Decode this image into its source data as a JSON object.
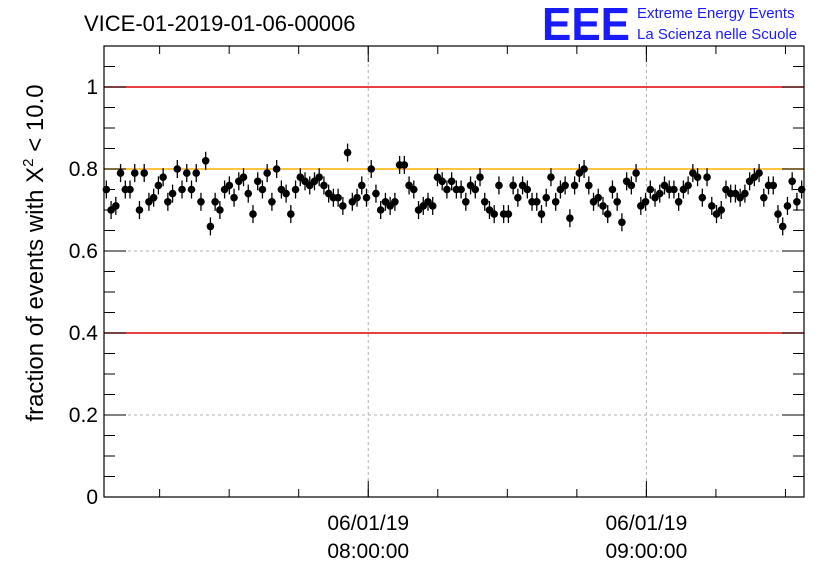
{
  "header": {
    "title": "VICE-01-2019-01-06-00006",
    "logo": {
      "mark": "EEE",
      "line1": "Extreme Energy Events",
      "line2": "La Scienza nelle Scuole",
      "color": "#1a1aff"
    }
  },
  "chart_data": {
    "type": "scatter",
    "title": "VICE-01-2019-01-06-00006",
    "ylabel_prefix": "fraction of events with ",
    "ylabel_symbol": "X",
    "ylabel_sup": "2",
    "ylabel_suffix": " < 10.0",
    "ylim": [
      0,
      1.1
    ],
    "xlim": [
      "2019-01-06T07:03:00",
      "2019-01-06T09:34:00"
    ],
    "yticks": [
      {
        "v": 0,
        "label": "0"
      },
      {
        "v": 0.2,
        "label": "0.2"
      },
      {
        "v": 0.4,
        "label": "0.4"
      },
      {
        "v": 0.6,
        "label": "0.6"
      },
      {
        "v": 0.8,
        "label": "0.8"
      },
      {
        "v": 1.0,
        "label": "1"
      }
    ],
    "xticks": [
      {
        "t": "2019-01-06T08:00:00",
        "line1": "06/01/19",
        "line2": "08:00:00"
      },
      {
        "t": "2019-01-06T09:00:00",
        "line1": "06/01/19",
        "line2": "09:00:00"
      }
    ],
    "grid": true,
    "reference_lines": [
      {
        "y": 1.0,
        "color": "#e00000"
      },
      {
        "y": 0.8,
        "color": "#ffb000"
      },
      {
        "y": 0.4,
        "color": "#e00000"
      }
    ],
    "error": 0.022,
    "series": [
      {
        "marker_color": "#000000",
        "values": [
          0.75,
          0.7,
          0.71,
          0.79,
          0.75,
          0.75,
          0.79,
          0.7,
          0.79,
          0.72,
          0.73,
          0.76,
          0.78,
          0.72,
          0.74,
          0.8,
          0.75,
          0.79,
          0.75,
          0.79,
          0.72,
          0.82,
          0.66,
          0.72,
          0.7,
          0.75,
          0.76,
          0.73,
          0.77,
          0.78,
          0.74,
          0.69,
          0.77,
          0.75,
          0.79,
          0.72,
          0.8,
          0.75,
          0.74,
          0.69,
          0.75,
          0.78,
          0.77,
          0.76,
          0.77,
          0.78,
          0.76,
          0.74,
          0.73,
          0.73,
          0.71,
          0.84,
          0.72,
          0.73,
          0.76,
          0.73,
          0.8,
          0.74,
          0.7,
          0.72,
          0.71,
          0.72,
          0.81,
          0.81,
          0.76,
          0.75,
          0.7,
          0.71,
          0.72,
          0.71,
          0.78,
          0.77,
          0.75,
          0.77,
          0.75,
          0.75,
          0.72,
          0.76,
          0.75,
          0.78,
          0.72,
          0.7,
          0.69,
          0.76,
          0.69,
          0.69,
          0.76,
          0.73,
          0.76,
          0.75,
          0.72,
          0.72,
          0.69,
          0.73,
          0.78,
          0.72,
          0.75,
          0.76,
          0.68,
          0.76,
          0.79,
          0.8,
          0.76,
          0.72,
          0.73,
          0.71,
          0.69,
          0.75,
          0.72,
          0.67,
          0.77,
          0.76,
          0.79,
          0.71,
          0.72,
          0.75,
          0.73,
          0.74,
          0.76,
          0.75,
          0.75,
          0.72,
          0.75,
          0.76,
          0.79,
          0.78,
          0.73,
          0.78,
          0.71,
          0.69,
          0.7,
          0.75,
          0.74,
          0.74,
          0.73,
          0.74,
          0.77,
          0.78,
          0.79,
          0.73,
          0.76,
          0.76,
          0.69,
          0.66,
          0.71,
          0.77,
          0.72,
          0.75
        ]
      }
    ]
  }
}
